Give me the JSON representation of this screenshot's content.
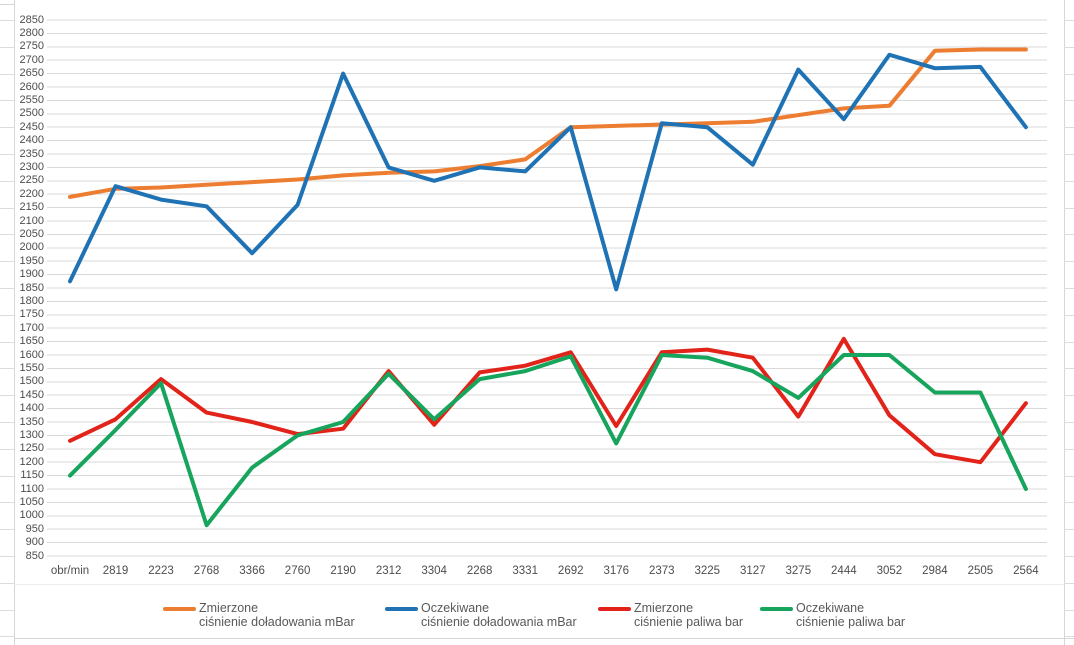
{
  "chart_data": {
    "type": "line",
    "title": "",
    "categories": [
      "obr/min",
      "2819",
      "2223",
      "2768",
      "3366",
      "2760",
      "2190",
      "2312",
      "3304",
      "2268",
      "3331",
      "2692",
      "3176",
      "2373",
      "3225",
      "3127",
      "3275",
      "2444",
      "3052",
      "2984",
      "2505",
      "2564"
    ],
    "x_axis_unit_label": "obr/min",
    "ylim": [
      850,
      2850
    ],
    "y_step": 50,
    "grid": true,
    "legend_position": "bottom",
    "series": [
      {
        "name": "Zmierzone ciśnienie doładowania mBar",
        "legend_line1": "Zmierzone",
        "legend_line2": "ciśnienie doładowania mBar",
        "color": "#ED7D31",
        "values": [
          2190,
          2220,
          2225,
          2235,
          2245,
          2255,
          2270,
          2280,
          2285,
          2305,
          2330,
          2450,
          2455,
          2460,
          2465,
          2470,
          2495,
          2520,
          2530,
          2735,
          2740,
          2740
        ]
      },
      {
        "name": "Oczekiwane ciśnienie doładowania mBar",
        "legend_line1": "Oczekiwane",
        "legend_line2": "ciśnienie doładowania mBar",
        "color": "#1F73B5",
        "values": [
          1875,
          2230,
          2180,
          2155,
          1980,
          2160,
          2650,
          2300,
          2250,
          2300,
          2285,
          2450,
          1845,
          2465,
          2450,
          2310,
          2665,
          2480,
          2720,
          2670,
          2675,
          2450
        ]
      },
      {
        "name": "Zmierzone ciśnienie paliwa bar",
        "legend_line1": "Zmierzone",
        "legend_line2": "ciśnienie paliwa bar",
        "color": "#E2231A",
        "values": [
          1280,
          1360,
          1510,
          1385,
          1350,
          1305,
          1325,
          1540,
          1340,
          1535,
          1560,
          1610,
          1335,
          1610,
          1620,
          1590,
          1370,
          1660,
          1375,
          1230,
          1200,
          1420
        ]
      },
      {
        "name": "Oczekiwane ciśnienie paliwa bar",
        "legend_line1": "Oczekiwane",
        "legend_line2": "ciśnienie paliwa bar",
        "color": "#17A45C",
        "values": [
          1150,
          1320,
          1495,
          965,
          1180,
          1300,
          1350,
          1530,
          1360,
          1510,
          1540,
          1595,
          1270,
          1600,
          1590,
          1540,
          1440,
          1600,
          1600,
          1460,
          1460,
          1100
        ]
      }
    ],
    "colors": {
      "background": "#FFFFFF",
      "gridline": "#D9D9D9",
      "axis_label": "#4D4D4D",
      "legend_text": "#595959",
      "spreadsheet_line": "#D6D6D6"
    }
  }
}
